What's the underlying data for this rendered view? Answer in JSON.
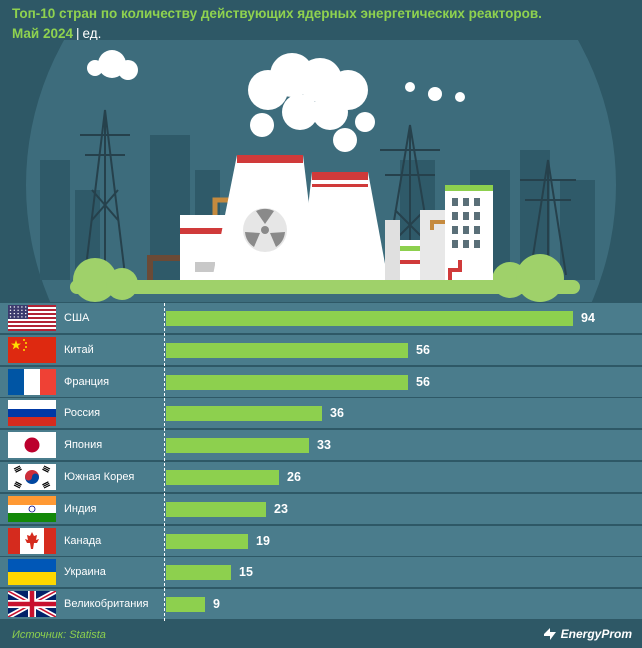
{
  "colors": {
    "background": "#2e5866",
    "row": "#4a7c8c",
    "bar": "#8dd04e",
    "title": "#8fd24f"
  },
  "title": {
    "main": "Топ-10 стран по количеству действующих ядерных энергетических реакторов.",
    "period": "Май 2024",
    "sep": "|",
    "unit": "ед."
  },
  "chart_data": {
    "type": "bar",
    "orientation": "horizontal",
    "categories": [
      "США",
      "Китай",
      "Франция",
      "Россия",
      "Япония",
      "Южная Корея",
      "Индия",
      "Канада",
      "Украина",
      "Великобритания"
    ],
    "values": [
      94,
      56,
      56,
      36,
      33,
      26,
      23,
      19,
      15,
      9
    ],
    "flags": [
      "usa-flag-icon",
      "china-flag-icon",
      "france-flag-icon",
      "russia-flag-icon",
      "japan-flag-icon",
      "south-korea-flag-icon",
      "india-flag-icon",
      "canada-flag-icon",
      "ukraine-flag-icon",
      "uk-flag-icon"
    ],
    "title": "Топ-10 стран по количеству действующих ядерных энергетических реакторов.",
    "xlim": [
      0,
      100
    ],
    "grid": false,
    "legend": "none"
  },
  "footer": {
    "source": "Источник: Statista",
    "brand": "EnergyProm"
  },
  "illustration": {
    "icon": "nuclear-power-plant-icon",
    "symbol": "radiation-icon"
  }
}
